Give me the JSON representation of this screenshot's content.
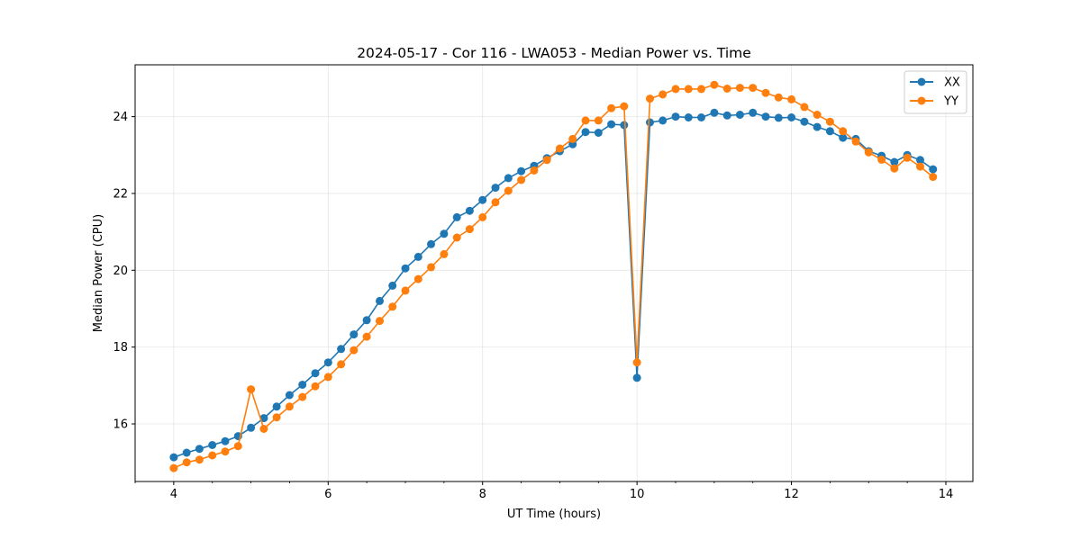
{
  "chart_data": {
    "type": "line",
    "title": "2024-05-17 - Cor 116 - LWA053 - Median Power vs. Time",
    "xlabel": "UT Time (hours)",
    "ylabel": "Median Power (CPU)",
    "xlim": [
      3.5,
      14.35
    ],
    "ylim": [
      14.5,
      25.35
    ],
    "xticks": [
      4,
      6,
      8,
      10,
      12,
      14
    ],
    "yticks": [
      16,
      18,
      20,
      22,
      24
    ],
    "grid": true,
    "legend_position": "top-right",
    "x": [
      4.0,
      4.167,
      4.333,
      4.5,
      4.667,
      4.833,
      5.0,
      5.167,
      5.333,
      5.5,
      5.667,
      5.833,
      6.0,
      6.167,
      6.333,
      6.5,
      6.667,
      6.833,
      7.0,
      7.167,
      7.333,
      7.5,
      7.667,
      7.833,
      8.0,
      8.167,
      8.333,
      8.5,
      8.667,
      8.833,
      9.0,
      9.167,
      9.333,
      9.5,
      9.667,
      9.833,
      10.0,
      10.167,
      10.333,
      10.5,
      10.667,
      10.833,
      11.0,
      11.167,
      11.333,
      11.5,
      11.667,
      11.833,
      12.0,
      12.167,
      12.333,
      12.5,
      12.667,
      12.833,
      13.0,
      13.167,
      13.333,
      13.5,
      13.667,
      13.833
    ],
    "series": [
      {
        "name": "XX",
        "color": "#1f77b4",
        "values": [
          15.13,
          15.25,
          15.35,
          15.45,
          15.55,
          15.68,
          15.9,
          16.15,
          16.45,
          16.75,
          17.02,
          17.32,
          17.6,
          17.95,
          18.33,
          18.7,
          19.2,
          19.6,
          20.05,
          20.35,
          20.68,
          20.95,
          21.38,
          21.55,
          21.83,
          22.15,
          22.4,
          22.58,
          22.72,
          22.92,
          23.1,
          23.28,
          23.6,
          23.58,
          23.8,
          23.78,
          17.2,
          23.85,
          23.9,
          24.0,
          23.98,
          23.98,
          24.1,
          24.03,
          24.05,
          24.1,
          24.0,
          23.97,
          23.98,
          23.87,
          23.73,
          23.62,
          23.45,
          23.42,
          23.1,
          22.98,
          22.82,
          23.0,
          22.87,
          22.63
        ]
      },
      {
        "name": "YY",
        "color": "#ff7f0e",
        "values": [
          14.85,
          15.0,
          15.07,
          15.18,
          15.28,
          15.42,
          16.9,
          15.87,
          16.17,
          16.45,
          16.7,
          16.98,
          17.22,
          17.55,
          17.92,
          18.27,
          18.68,
          19.05,
          19.47,
          19.77,
          20.08,
          20.42,
          20.85,
          21.07,
          21.38,
          21.77,
          22.07,
          22.35,
          22.6,
          22.87,
          23.17,
          23.42,
          23.9,
          23.9,
          24.22,
          24.27,
          17.6,
          24.47,
          24.58,
          24.72,
          24.72,
          24.72,
          24.83,
          24.73,
          24.75,
          24.75,
          24.62,
          24.5,
          24.45,
          24.25,
          24.05,
          23.87,
          23.62,
          23.35,
          23.07,
          22.88,
          22.65,
          22.93,
          22.7,
          22.43
        ]
      }
    ]
  }
}
